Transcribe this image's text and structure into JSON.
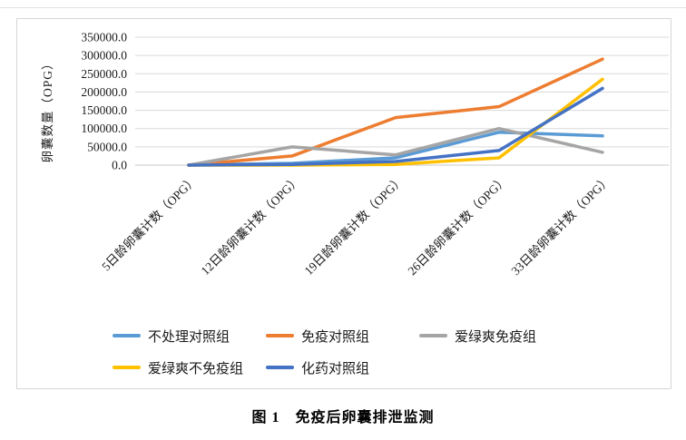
{
  "page": {
    "caption": "图 1　免疫后卵囊排泄监测"
  },
  "chart_data": {
    "type": "line",
    "title": "",
    "xlabel": "",
    "ylabel": "卵囊数量（OPG）",
    "ylim": [
      0,
      350000
    ],
    "ytick_step": 50000,
    "ytick_decimals": 1,
    "grid": true,
    "legend_position": "bottom",
    "categories": [
      "5日龄卵囊计数（OPG）",
      "12日龄卵囊计数（OPG）",
      "19日龄卵囊计数（OPG）",
      "26日龄卵囊计数（OPG）",
      "33日龄卵囊计数（OPG）"
    ],
    "series": [
      {
        "name": "不处理对照组",
        "color": "#5B9BD5",
        "values": [
          0,
          5000,
          20000,
          90000,
          80000
        ]
      },
      {
        "name": "免疫对照组",
        "color": "#ED7D31",
        "values": [
          0,
          25000,
          130000,
          160000,
          290000
        ]
      },
      {
        "name": "爱绿爽免疫组",
        "color": "#A5A5A5",
        "values": [
          0,
          50000,
          28000,
          100000,
          35000
        ]
      },
      {
        "name": "爱绿爽不免疫组",
        "color": "#FFC000",
        "values": [
          0,
          0,
          2000,
          20000,
          235000
        ]
      },
      {
        "name": "化药对照组",
        "color": "#4472C4",
        "values": [
          0,
          2000,
          10000,
          40000,
          210000
        ]
      }
    ],
    "line_style": {
      "stroke_width": 3.5,
      "markers": false
    },
    "gridline_color": "#D9D9D9",
    "border_color": "#D6D6D6"
  }
}
